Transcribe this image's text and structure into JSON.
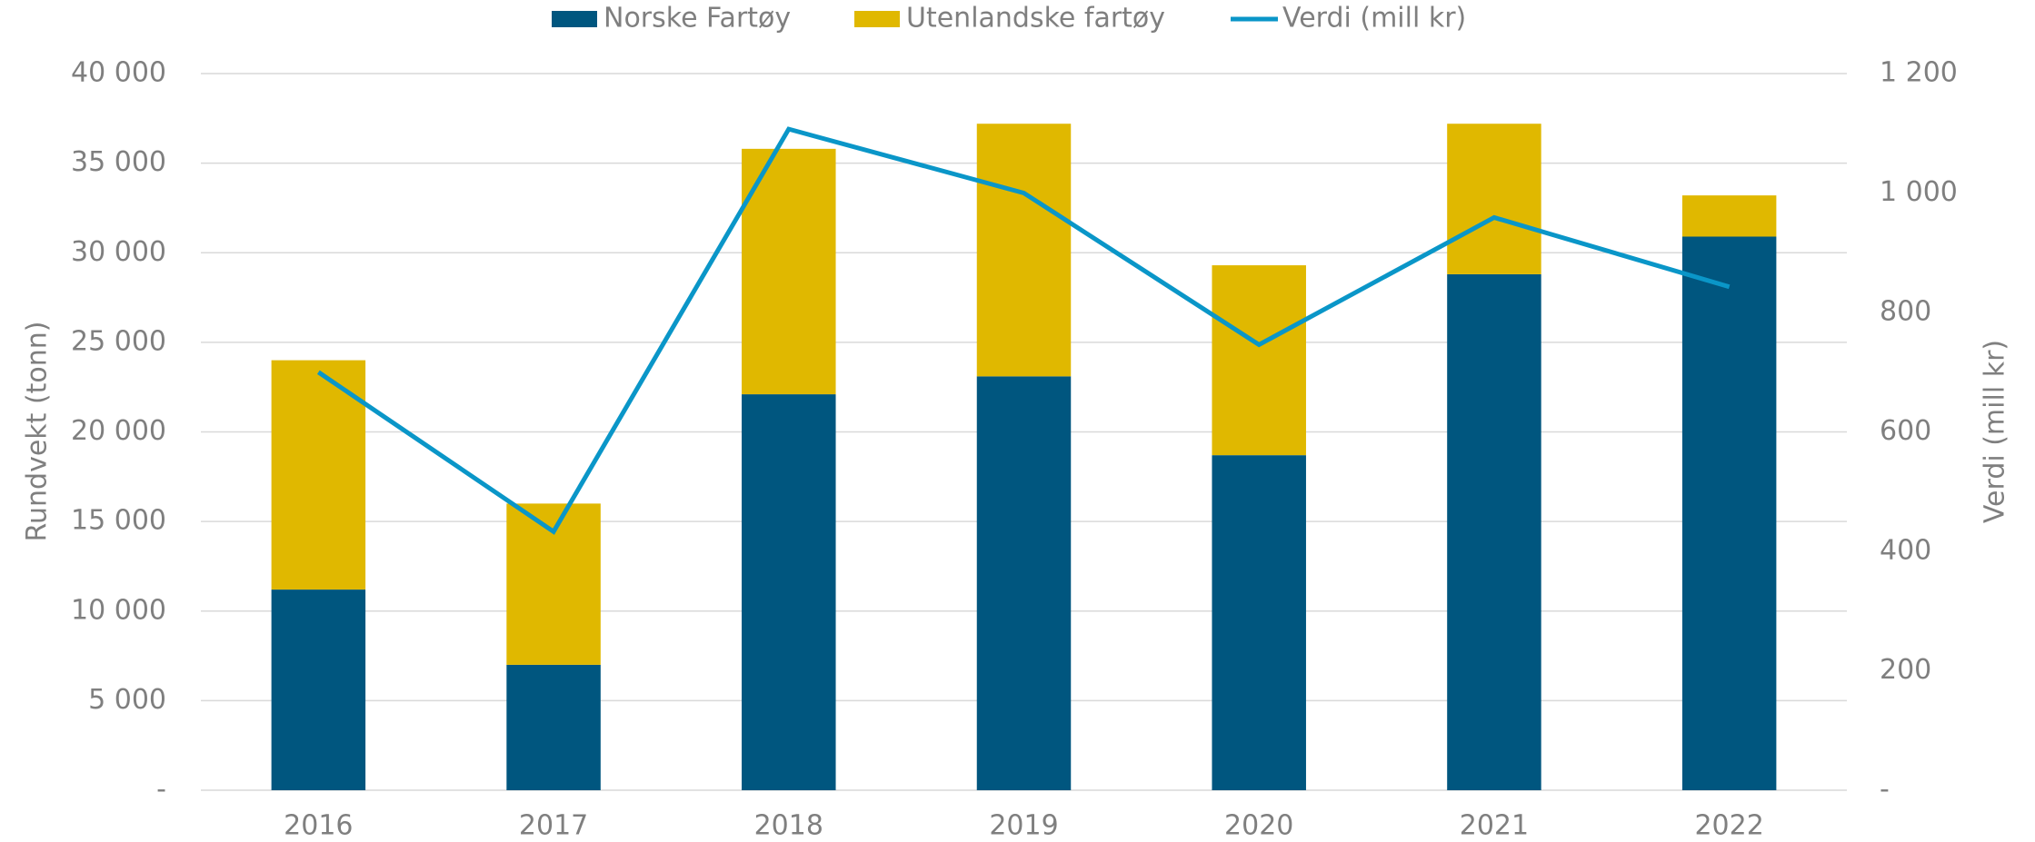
{
  "chart_data": {
    "type": "bar",
    "categories": [
      "2016",
      "2017",
      "2018",
      "2019",
      "2020",
      "2021",
      "2022"
    ],
    "series": [
      {
        "name": "Norske Fartøy",
        "color": "#00567f",
        "values": [
          11200,
          7000,
          22100,
          23100,
          18700,
          28800,
          30900
        ]
      },
      {
        "name": "Utenlandske fartøy",
        "color": "#e0b800",
        "values": [
          12800,
          9000,
          13700,
          14100,
          10600,
          8400,
          2300
        ]
      },
      {
        "name": "Verdi (mill kr)",
        "color": "#0a96c8",
        "type": "line",
        "axis": "y2",
        "values": [
          700,
          433,
          1107,
          1000,
          746,
          959,
          843
        ]
      }
    ],
    "ylabel": "Rundvekt (tonn)",
    "y2label": "Verdi (mill kr)",
    "ylim": [
      0,
      40000
    ],
    "yticks": [
      {
        "value": 0,
        "label": "-"
      },
      {
        "value": 5000,
        "label": "5 000"
      },
      {
        "value": 10000,
        "label": "10 000"
      },
      {
        "value": 15000,
        "label": "15 000"
      },
      {
        "value": 20000,
        "label": "20 000"
      },
      {
        "value": 25000,
        "label": "25 000"
      },
      {
        "value": 30000,
        "label": "30 000"
      },
      {
        "value": 35000,
        "label": "35 000"
      },
      {
        "value": 40000,
        "label": "40 000"
      }
    ],
    "y2lim": [
      0,
      1200
    ],
    "y2ticks": [
      {
        "value": 0,
        "label": "-"
      },
      200,
      400,
      600,
      800,
      {
        "value": 1000,
        "label": "1 000"
      },
      {
        "value": 1200,
        "label": "1 200"
      }
    ],
    "grid": true,
    "legend": "top",
    "stacked": true
  }
}
